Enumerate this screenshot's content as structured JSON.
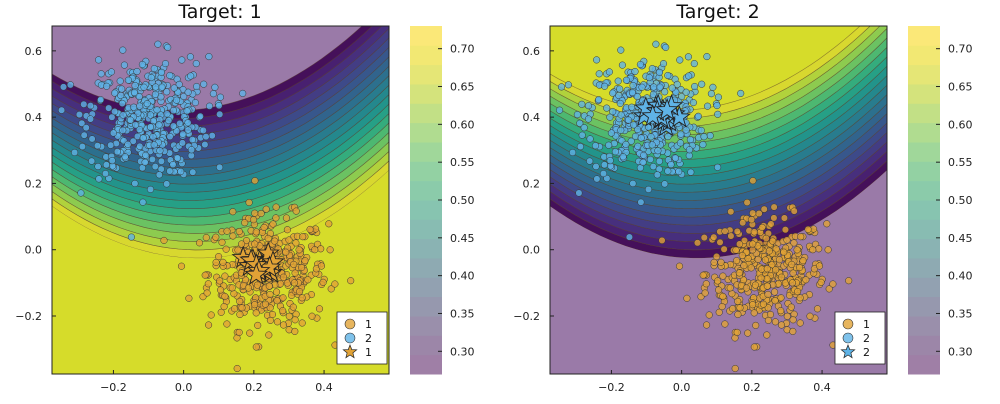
{
  "chart_data": {
    "type": "scatter",
    "description_kind": "contour-with-scatter",
    "x_range": [
      -0.375,
      0.585
    ],
    "y_range": [
      -0.375,
      0.675
    ],
    "x_ticks": [
      -0.2,
      0.0,
      0.2,
      0.4
    ],
    "x_tick_labels": [
      "−0.2",
      "0.0",
      "0.2",
      "0.4"
    ],
    "y_ticks": [
      -0.2,
      0.0,
      0.2,
      0.4,
      0.6
    ],
    "y_tick_labels": [
      "−0.2",
      "0.0",
      "0.2",
      "0.4",
      "0.6"
    ],
    "colorbar": {
      "range": [
        0.27,
        0.73
      ],
      "ticks": [
        0.3,
        0.35,
        0.4,
        0.45,
        0.5,
        0.55,
        0.6,
        0.65,
        0.7
      ],
      "tick_labels": [
        "0.30",
        "0.35",
        "0.40",
        "0.45",
        "0.50",
        "0.55",
        "0.60",
        "0.65",
        "0.70"
      ],
      "levels": 18,
      "colormap": "viridis"
    },
    "clusters": [
      {
        "name": "1",
        "color": "#e1a236",
        "center": [
          0.24,
          -0.07
        ],
        "spread": [
          0.085,
          0.085
        ],
        "n": 420
      },
      {
        "name": "2",
        "color": "#5fb3e6",
        "center": [
          -0.1,
          0.4
        ],
        "spread": [
          0.085,
          0.09
        ],
        "n": 420
      }
    ],
    "panels": [
      {
        "title": "Target: 1",
        "field_high_side": "below-boundary",
        "highlight": {
          "name": "1",
          "color": "#e1a236",
          "center": [
            0.22,
            -0.05
          ]
        },
        "legend": [
          {
            "marker": "circle",
            "color": "#e1a236",
            "label": "1"
          },
          {
            "marker": "circle",
            "color": "#5fb3e6",
            "label": "2"
          },
          {
            "marker": "star",
            "color": "#e1a236",
            "label": "1"
          }
        ]
      },
      {
        "title": "Target: 2",
        "field_high_side": "above-boundary",
        "highlight": {
          "name": "2",
          "color": "#5fb3e6",
          "center": [
            -0.05,
            0.4
          ]
        },
        "legend": [
          {
            "marker": "circle",
            "color": "#e1a236",
            "label": "1"
          },
          {
            "marker": "circle",
            "color": "#5fb3e6",
            "label": "2"
          },
          {
            "marker": "star",
            "color": "#5fb3e6",
            "label": "2"
          }
        ]
      }
    ]
  }
}
